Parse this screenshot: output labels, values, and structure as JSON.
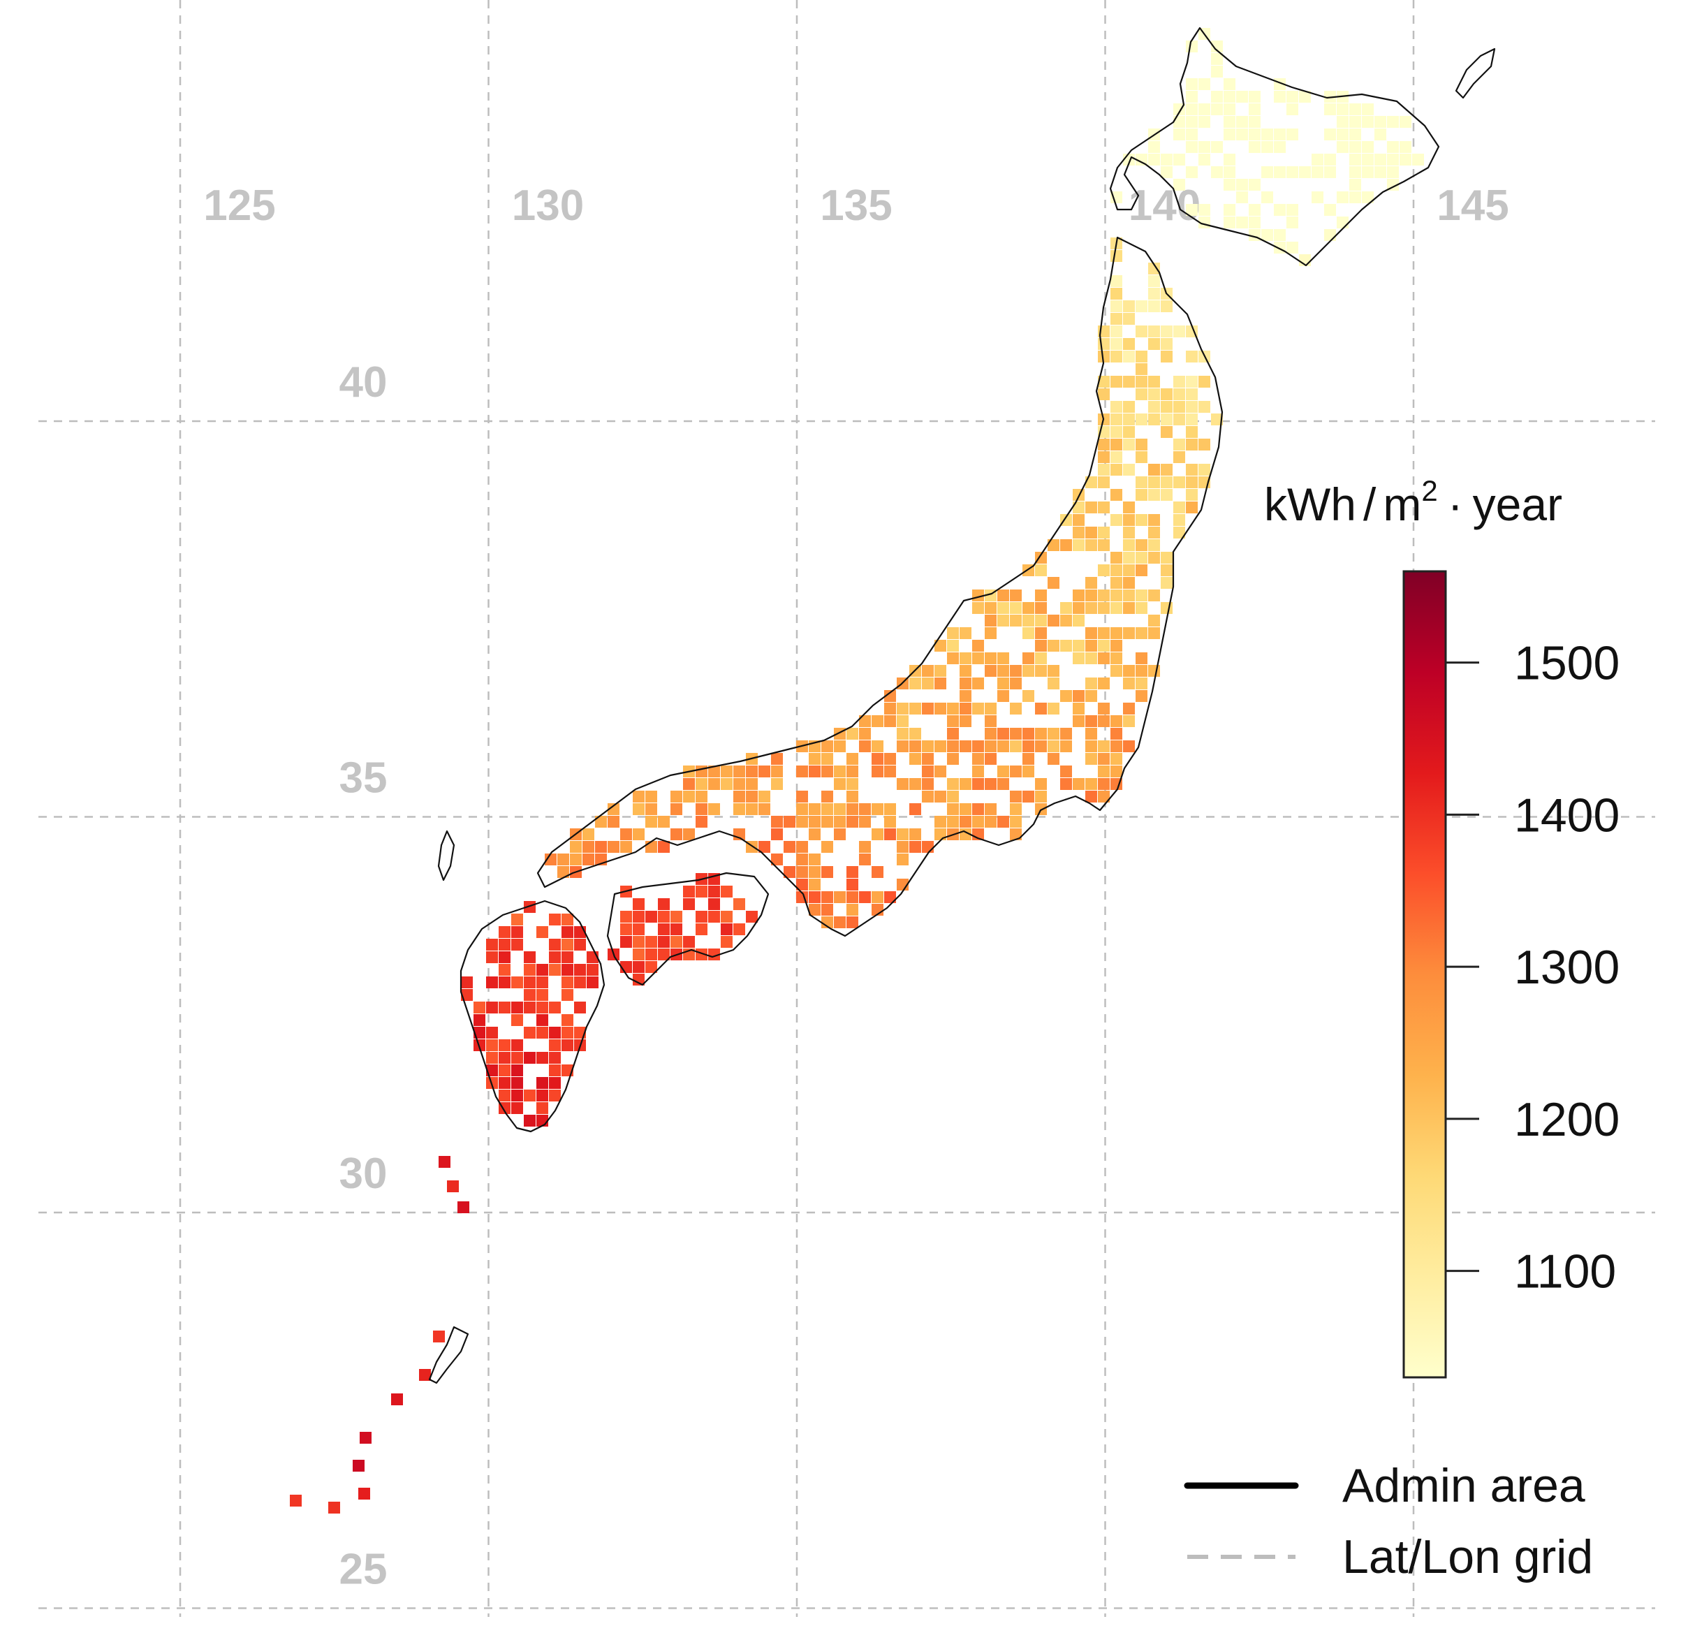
{
  "map": {
    "grid": {
      "longitudes": [
        125,
        130,
        135,
        140,
        145
      ],
      "latitudes": [
        40,
        35,
        30,
        25
      ],
      "lon_labels": [
        "125",
        "130",
        "135",
        "140",
        "145"
      ],
      "lat_labels": [
        "40",
        "35",
        "30",
        "25"
      ]
    },
    "colorbar": {
      "title_main": "kWh",
      "title_slash": "/",
      "title_m": "m",
      "title_sup": "2",
      "title_dot": "·",
      "title_year": "year",
      "min": 1030,
      "max": 1560,
      "ticks": [
        1100,
        1200,
        1300,
        1400,
        1500
      ],
      "tick_labels": [
        "1100",
        "1200",
        "1300",
        "1400",
        "1500"
      ],
      "colors": [
        "#ffffcc",
        "#ffeda0",
        "#fed976",
        "#feb24c",
        "#fd8d3c",
        "#fc4e2a",
        "#e31a1c",
        "#bd0026",
        "#800026"
      ]
    },
    "legend": {
      "admin_label": "Admin area",
      "grid_label": "Lat/Lon grid"
    },
    "colors": {
      "grid": "#bdbdbd",
      "grid_label": "#c4c4c4",
      "coast": "#111111"
    }
  }
}
